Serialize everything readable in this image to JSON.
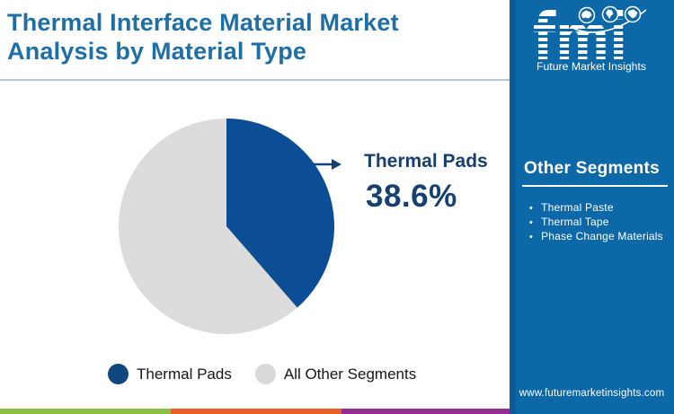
{
  "header": {
    "title_line1": "Thermal Interface Material Market",
    "title_line2": "Analysis by Material Type"
  },
  "chart_data": {
    "type": "pie",
    "title": "Thermal Interface Material Market Analysis by Material Type",
    "slices": [
      {
        "label": "Thermal Pads",
        "value": 38.6,
        "color": "#0c4e96"
      },
      {
        "label": "All Other Segments",
        "value": 61.4,
        "color": "#dcdcdc"
      }
    ],
    "start_angle_deg": 0,
    "direction": "clockwise",
    "annotation": {
      "label": "Thermal Pads",
      "value_text": "38.6%"
    },
    "legend_position": "bottom"
  },
  "callout": {
    "label": "Thermal Pads",
    "value_text": "38.6%"
  },
  "legend": {
    "items": [
      {
        "label": "Thermal Pads",
        "color": "#11477f"
      },
      {
        "label": "All Other Segments",
        "color": "#d9d9d9"
      }
    ]
  },
  "sidebar": {
    "panel_title": "Other Segments",
    "items": [
      "Thermal Paste",
      "Thermal Tape",
      "Phase Change Materials"
    ],
    "website": "www.futuremarketinsights.com"
  },
  "brand": {
    "logo_text": "fmi",
    "logo_subtext": "Future Market Insights",
    "globe_icons": [
      "globe-americas-icon",
      "globe-europe-africa-icon",
      "globe-asia-icon"
    ]
  },
  "colors": {
    "sidebar_blue": "#0d68a8",
    "title_blue": "#1e6fa6",
    "callout_navy": "#16406f",
    "pie_blue": "#0c4e96",
    "pie_gray": "#dcdcdc",
    "strip_green": "#8bc043",
    "strip_orange": "#e95f28",
    "strip_purple": "#913090",
    "header_rule": "#b2cade"
  }
}
